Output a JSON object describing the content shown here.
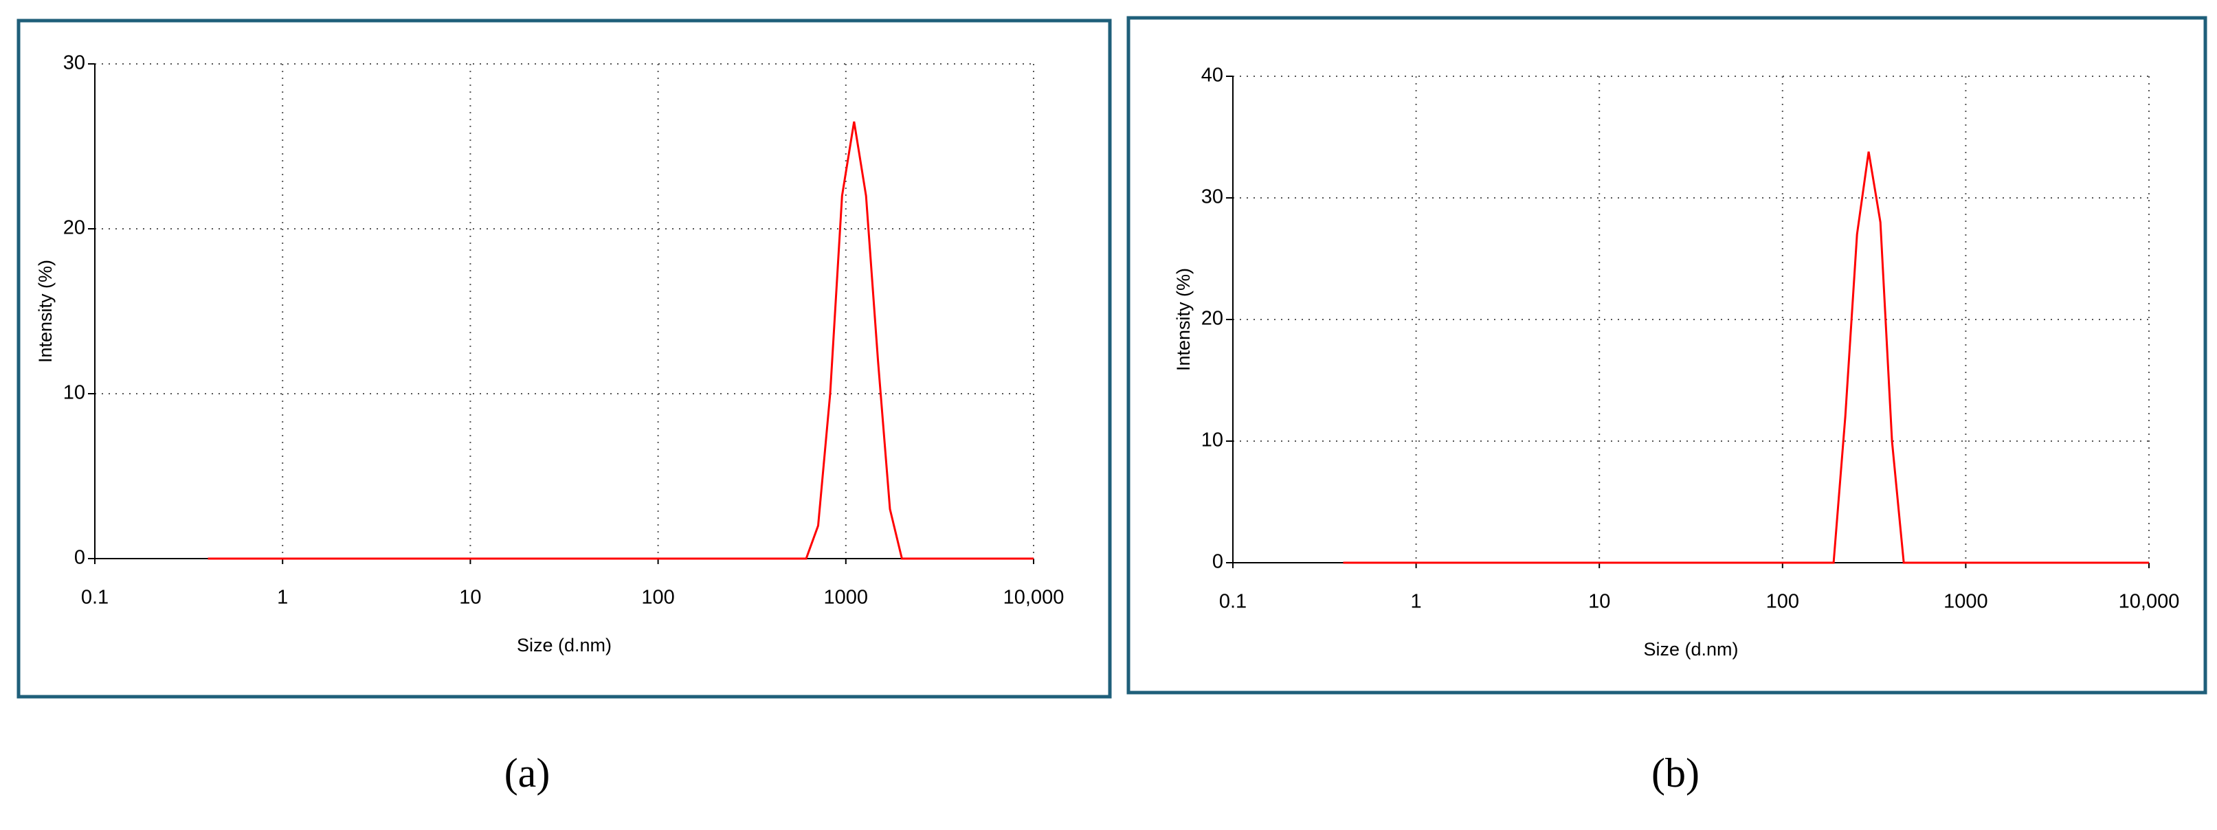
{
  "chart_data": [
    {
      "type": "line",
      "panel_label": "(a)",
      "xlabel": "Size (d.nm)",
      "ylabel": "Intensity (%)",
      "xscale": "log",
      "grid": true,
      "color": "#ff0000",
      "x": [
        0.4,
        615,
        712,
        825,
        955,
        1106,
        1281,
        1484,
        1718,
        1990,
        10000
      ],
      "values": [
        0,
        0,
        2,
        10,
        22,
        26.5,
        22,
        12,
        3,
        0,
        0
      ],
      "xlim": [
        0.1,
        10000
      ],
      "xticks": [
        0.1,
        1,
        10,
        100,
        1000,
        {
          "value": 10000,
          "label": "10,000"
        }
      ],
      "ylim": [
        0,
        30
      ],
      "yticks": [
        0,
        10,
        20,
        30
      ]
    },
    {
      "type": "line",
      "panel_label": "(b)",
      "xlabel": "Size (d.nm)",
      "ylabel": "Intensity (%)",
      "xscale": "log",
      "grid": true,
      "color": "#ff0000",
      "x": [
        0.4,
        190,
        220,
        255,
        295,
        342,
        396,
        459,
        10000
      ],
      "values": [
        0,
        0,
        12,
        27,
        33.8,
        28,
        10,
        0,
        0
      ],
      "xlim": [
        0.1,
        10000
      ],
      "xticks": [
        0.1,
        1,
        10,
        100,
        1000,
        {
          "value": 10000,
          "label": "10,000"
        }
      ],
      "ylim": [
        0,
        40
      ],
      "yticks": [
        0,
        10,
        20,
        30,
        40
      ]
    }
  ]
}
